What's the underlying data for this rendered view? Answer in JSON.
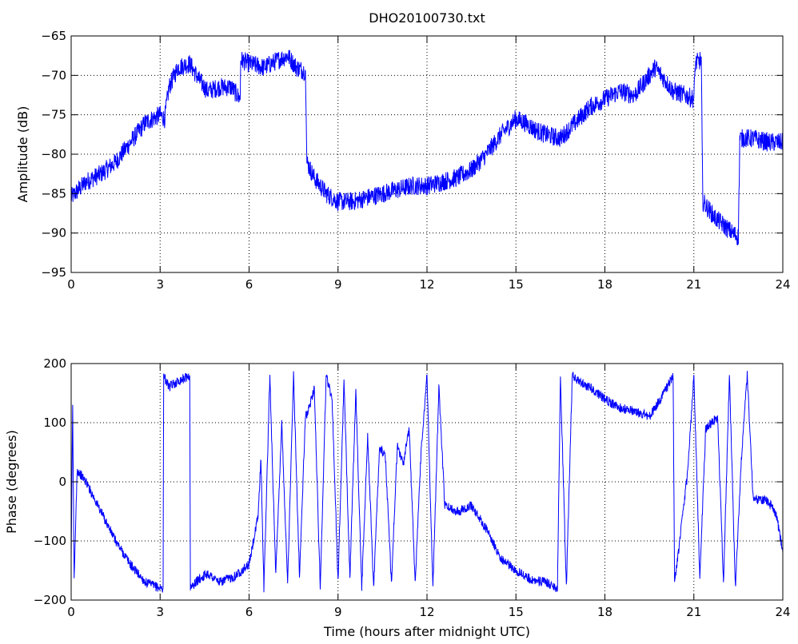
{
  "chart_data": [
    {
      "type": "line",
      "title": "DHO20100730.txt",
      "xlabel": "",
      "ylabel": "Amplitude (dB)",
      "xlim": [
        0,
        24
      ],
      "ylim": [
        -95,
        -65
      ],
      "xticks": [
        "0",
        "3",
        "6",
        "9",
        "12",
        "15",
        "18",
        "21",
        "24"
      ],
      "yticks": [
        "-65",
        "-70",
        "-75",
        "-80",
        "-85",
        "-90",
        "-95"
      ],
      "grid": true,
      "line_color": "#0000ff",
      "series": [
        {
          "x": [
            0,
            0.5,
            1,
            1.5,
            2,
            2.5,
            3,
            3.15,
            3.3,
            3.6,
            4,
            4.3,
            4.6,
            5,
            5.4,
            5.7,
            5.72,
            6,
            6.5,
            7,
            7.3,
            7.6,
            7.9,
            7.95,
            8.2,
            8.6,
            9,
            9.5,
            10,
            10.5,
            11,
            11.5,
            12,
            12.5,
            13,
            13.5,
            14,
            14.5,
            15,
            15.3,
            15.7,
            16,
            16.5,
            17,
            17.5,
            18,
            18.5,
            19,
            19.4,
            19.7,
            20,
            20.3,
            20.7,
            21,
            21.05,
            21.25,
            21.3,
            21.7,
            22,
            22.3,
            22.5,
            22.55,
            23,
            23.5,
            24
          ],
          "y": [
            -85.5,
            -83.5,
            -82.5,
            -81,
            -78.5,
            -76,
            -75,
            -75.5,
            -71.5,
            -69,
            -68.5,
            -70.5,
            -72,
            -71.5,
            -71.5,
            -73,
            -68,
            -68.5,
            -69,
            -68,
            -67.5,
            -69,
            -69.5,
            -81,
            -83,
            -85,
            -86,
            -86,
            -85.5,
            -85,
            -84.5,
            -84,
            -84,
            -83.5,
            -83,
            -82,
            -80,
            -77.5,
            -75.5,
            -76,
            -77,
            -77.5,
            -78,
            -76,
            -74,
            -73,
            -72,
            -72.5,
            -70.5,
            -69,
            -70.5,
            -72,
            -72.5,
            -73,
            -68.5,
            -68,
            -86,
            -88,
            -89,
            -90,
            -90.5,
            -78,
            -78,
            -78.5,
            -78.5
          ]
        }
      ]
    },
    {
      "type": "line",
      "title": "",
      "xlabel": "Time (hours after midnight UTC)",
      "ylabel": "Phase (degrees)",
      "xlim": [
        0,
        24
      ],
      "ylim": [
        -200,
        200
      ],
      "xticks": [
        "0",
        "3",
        "6",
        "9",
        "12",
        "15",
        "18",
        "21",
        "24"
      ],
      "yticks": [
        "200",
        "100",
        "0",
        "-100",
        "-200"
      ],
      "grid": true,
      "line_color": "#0000ff",
      "series": [
        {
          "x": [
            0,
            0.05,
            0.1,
            0.2,
            0.5,
            1,
            1.5,
            2,
            2.5,
            3,
            3.1,
            3.12,
            3.3,
            3.6,
            4,
            4.02,
            4.3,
            4.6,
            5,
            5.5,
            6,
            6.3,
            6.4,
            6.5,
            6.7,
            6.9,
            7.1,
            7.3,
            7.5,
            7.7,
            7.9,
            8,
            8.2,
            8.4,
            8.6,
            8.8,
            9,
            9.2,
            9.4,
            9.6,
            9.8,
            10,
            10.2,
            10.4,
            10.6,
            10.8,
            11,
            11.2,
            11.4,
            11.6,
            11.8,
            12,
            12.2,
            12.4,
            12.6,
            13,
            13.5,
            14,
            14.5,
            15,
            15.5,
            16,
            16.4,
            16.5,
            16.7,
            16.9,
            17,
            17.1,
            17.5,
            18,
            18.5,
            19,
            19.5,
            20,
            20.3,
            20.35,
            20.5,
            20.8,
            21,
            21.2,
            21.4,
            21.6,
            21.8,
            22,
            22.2,
            22.4,
            22.6,
            22.8,
            23,
            23.2,
            23.4,
            23.6,
            23.8,
            24
          ],
          "y": [
            -130,
            130,
            -170,
            20,
            0,
            -50,
            -100,
            -140,
            -170,
            -180,
            -180,
            180,
            160,
            170,
            180,
            -180,
            -165,
            -155,
            -170,
            -160,
            -140,
            -60,
            40,
            -180,
            180,
            -160,
            100,
            -170,
            180,
            -160,
            110,
            120,
            160,
            -180,
            180,
            140,
            -170,
            170,
            -160,
            150,
            -180,
            80,
            -180,
            60,
            40,
            -170,
            60,
            30,
            90,
            -170,
            50,
            180,
            -180,
            160,
            -40,
            -50,
            -40,
            -80,
            -130,
            -150,
            -165,
            -170,
            -180,
            180,
            -180,
            180,
            175,
            170,
            160,
            140,
            125,
            120,
            110,
            150,
            180,
            -170,
            -110,
            20,
            180,
            -160,
            90,
            100,
            110,
            -170,
            180,
            -180,
            40,
            180,
            -30,
            -30,
            -30,
            -40,
            -60,
            -120
          ]
        }
      ]
    }
  ]
}
